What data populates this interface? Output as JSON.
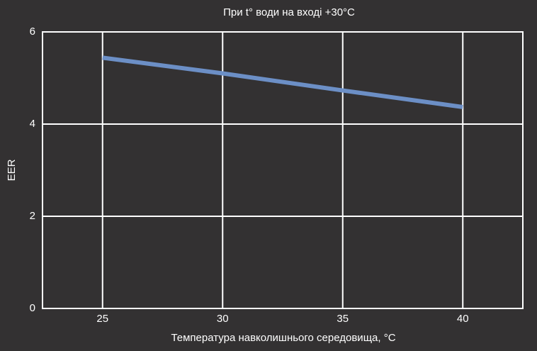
{
  "chart_data": {
    "type": "line",
    "title": "При t° води на вході +30°C",
    "x_label": "Температура навколишнього середовища, °C",
    "y_label": "EER",
    "x": [
      25,
      30,
      35,
      40
    ],
    "series": [
      {
        "name": "EER",
        "color": "#6c8fc6",
        "values": [
          5.44,
          5.1,
          4.73,
          4.37
        ]
      }
    ],
    "xlim": [
      22.5,
      42.5
    ],
    "xticks": [
      25,
      30,
      35,
      40
    ],
    "ylim": [
      0,
      6
    ],
    "yticks": [
      0,
      2,
      4,
      6
    ],
    "grid": true
  }
}
